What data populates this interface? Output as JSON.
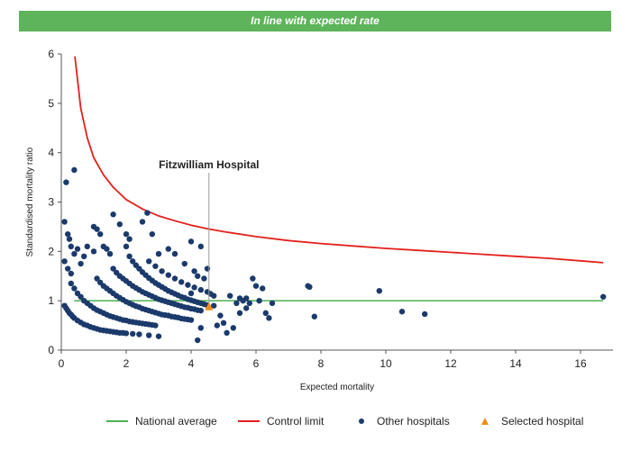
{
  "banner": {
    "text": "In line with expected rate"
  },
  "chart_data": {
    "type": "scatter",
    "xlabel": "Expected mortality",
    "ylabel": "Standardised mortality ratio",
    "xlim": [
      0,
      17
    ],
    "ylim": [
      0,
      6
    ],
    "xticks": [
      0,
      2,
      4,
      6,
      8,
      10,
      12,
      14,
      16
    ],
    "yticks": [
      0,
      1,
      2,
      3,
      4,
      5,
      6
    ],
    "grid": false,
    "legend_position": "bottom",
    "national_average": {
      "name": "National average",
      "color": "#4caf50",
      "x": [
        0.4,
        16.7
      ],
      "y": 1.0
    },
    "control_limit": {
      "name": "Control limit",
      "color": "#e3201b",
      "points": [
        [
          0.42,
          5.95
        ],
        [
          0.6,
          4.9
        ],
        [
          0.8,
          4.3
        ],
        [
          1.0,
          3.9
        ],
        [
          1.3,
          3.55
        ],
        [
          1.6,
          3.3
        ],
        [
          2.0,
          3.05
        ],
        [
          2.5,
          2.86
        ],
        [
          3.0,
          2.72
        ],
        [
          3.5,
          2.62
        ],
        [
          4.0,
          2.53
        ],
        [
          4.5,
          2.46
        ],
        [
          5.0,
          2.4
        ],
        [
          6.0,
          2.3
        ],
        [
          7.0,
          2.22
        ],
        [
          8.0,
          2.16
        ],
        [
          9.0,
          2.11
        ],
        [
          10.0,
          2.06
        ],
        [
          11.0,
          2.02
        ],
        [
          12.0,
          1.98
        ],
        [
          13.0,
          1.94
        ],
        [
          14.0,
          1.9
        ],
        [
          15.0,
          1.86
        ],
        [
          16.0,
          1.81
        ],
        [
          16.7,
          1.77
        ]
      ]
    },
    "other_hospitals": {
      "name": "Other hospitals",
      "color": "#1b3a6b",
      "points": [
        [
          0.1,
          0.9
        ],
        [
          0.15,
          0.85
        ],
        [
          0.2,
          0.8
        ],
        [
          0.25,
          0.75
        ],
        [
          0.3,
          0.72
        ],
        [
          0.35,
          0.68
        ],
        [
          0.4,
          0.65
        ],
        [
          0.5,
          0.6
        ],
        [
          0.6,
          0.56
        ],
        [
          0.7,
          0.52
        ],
        [
          0.8,
          0.5
        ],
        [
          0.9,
          0.47
        ],
        [
          1.0,
          0.45
        ],
        [
          1.1,
          0.43
        ],
        [
          1.2,
          0.41
        ],
        [
          1.3,
          0.4
        ],
        [
          1.4,
          0.39
        ],
        [
          1.5,
          0.38
        ],
        [
          1.6,
          0.37
        ],
        [
          1.7,
          0.36
        ],
        [
          1.8,
          0.35
        ],
        [
          1.9,
          0.35
        ],
        [
          2.0,
          0.34
        ],
        [
          2.2,
          0.33
        ],
        [
          2.4,
          0.32
        ],
        [
          2.7,
          0.3
        ],
        [
          3.0,
          0.28
        ],
        [
          0.3,
          1.35
        ],
        [
          0.4,
          1.25
        ],
        [
          0.5,
          1.15
        ],
        [
          0.6,
          1.08
        ],
        [
          0.7,
          1.0
        ],
        [
          0.8,
          0.95
        ],
        [
          0.9,
          0.9
        ],
        [
          1.0,
          0.85
        ],
        [
          1.1,
          0.81
        ],
        [
          1.2,
          0.78
        ],
        [
          1.3,
          0.75
        ],
        [
          1.4,
          0.72
        ],
        [
          1.5,
          0.69
        ],
        [
          1.6,
          0.67
        ],
        [
          1.7,
          0.65
        ],
        [
          1.8,
          0.63
        ],
        [
          1.9,
          0.61
        ],
        [
          2.0,
          0.6
        ],
        [
          2.1,
          0.58
        ],
        [
          2.2,
          0.57
        ],
        [
          2.3,
          0.56
        ],
        [
          2.4,
          0.55
        ],
        [
          2.5,
          0.54
        ],
        [
          2.6,
          0.53
        ],
        [
          2.7,
          0.52
        ],
        [
          2.8,
          0.51
        ],
        [
          2.9,
          0.5
        ],
        [
          1.1,
          1.45
        ],
        [
          1.2,
          1.37
        ],
        [
          1.3,
          1.3
        ],
        [
          1.4,
          1.25
        ],
        [
          1.5,
          1.2
        ],
        [
          1.6,
          1.15
        ],
        [
          1.7,
          1.1
        ],
        [
          1.8,
          1.06
        ],
        [
          1.9,
          1.02
        ],
        [
          2.0,
          0.98
        ],
        [
          2.1,
          0.95
        ],
        [
          2.2,
          0.92
        ],
        [
          2.3,
          0.89
        ],
        [
          2.4,
          0.87
        ],
        [
          2.5,
          0.84
        ],
        [
          2.6,
          0.82
        ],
        [
          2.7,
          0.8
        ],
        [
          2.8,
          0.78
        ],
        [
          2.9,
          0.76
        ],
        [
          3.0,
          0.74
        ],
        [
          3.1,
          0.72
        ],
        [
          3.2,
          0.71
        ],
        [
          3.3,
          0.7
        ],
        [
          3.4,
          0.68
        ],
        [
          3.5,
          0.67
        ],
        [
          3.6,
          0.66
        ],
        [
          3.7,
          0.64
        ],
        [
          3.8,
          0.63
        ],
        [
          3.9,
          0.62
        ],
        [
          4.0,
          0.61
        ],
        [
          1.6,
          1.65
        ],
        [
          1.7,
          1.57
        ],
        [
          1.8,
          1.5
        ],
        [
          1.9,
          1.45
        ],
        [
          2.0,
          1.4
        ],
        [
          2.1,
          1.35
        ],
        [
          2.2,
          1.3
        ],
        [
          2.3,
          1.26
        ],
        [
          2.4,
          1.22
        ],
        [
          2.5,
          1.18
        ],
        [
          2.6,
          1.15
        ],
        [
          2.7,
          1.12
        ],
        [
          2.8,
          1.09
        ],
        [
          2.9,
          1.06
        ],
        [
          3.0,
          1.03
        ],
        [
          3.1,
          1.01
        ],
        [
          3.2,
          0.99
        ],
        [
          3.3,
          0.97
        ],
        [
          3.4,
          0.95
        ],
        [
          3.5,
          0.93
        ],
        [
          3.6,
          0.91
        ],
        [
          3.7,
          0.89
        ],
        [
          3.8,
          0.87
        ],
        [
          3.9,
          0.86
        ],
        [
          4.0,
          0.84
        ],
        [
          4.1,
          0.83
        ],
        [
          4.2,
          0.81
        ],
        [
          4.3,
          0.8
        ],
        [
          2.1,
          1.9
        ],
        [
          2.2,
          1.8
        ],
        [
          2.3,
          1.72
        ],
        [
          2.4,
          1.65
        ],
        [
          2.5,
          1.58
        ],
        [
          2.6,
          1.52
        ],
        [
          2.7,
          1.46
        ],
        [
          2.8,
          1.41
        ],
        [
          2.9,
          1.36
        ],
        [
          3.0,
          1.32
        ],
        [
          3.1,
          1.28
        ],
        [
          3.2,
          1.24
        ],
        [
          3.3,
          1.2
        ],
        [
          3.4,
          1.17
        ],
        [
          3.5,
          1.14
        ],
        [
          3.6,
          1.11
        ],
        [
          3.7,
          1.08
        ],
        [
          3.8,
          1.06
        ],
        [
          3.9,
          1.03
        ],
        [
          4.0,
          1.01
        ],
        [
          4.1,
          0.99
        ],
        [
          4.2,
          0.97
        ],
        [
          4.3,
          0.95
        ],
        [
          4.4,
          0.93
        ],
        [
          4.5,
          0.91
        ],
        [
          2.7,
          1.8
        ],
        [
          2.9,
          1.7
        ],
        [
          3.1,
          1.6
        ],
        [
          3.3,
          1.52
        ],
        [
          3.5,
          1.45
        ],
        [
          3.7,
          1.38
        ],
        [
          3.9,
          1.32
        ],
        [
          4.1,
          1.27
        ],
        [
          4.3,
          1.22
        ],
        [
          4.5,
          1.18
        ],
        [
          4.6,
          1.14
        ],
        [
          4.7,
          1.1
        ],
        [
          4.2,
          1.5
        ],
        [
          4.4,
          1.45
        ],
        [
          0.1,
          1.8
        ],
        [
          0.2,
          1.65
        ],
        [
          0.3,
          1.55
        ],
        [
          0.1,
          2.6
        ],
        [
          0.2,
          2.35
        ],
        [
          0.25,
          2.25
        ],
        [
          0.3,
          2.1
        ],
        [
          0.4,
          1.95
        ],
        [
          0.5,
          2.05
        ],
        [
          0.6,
          1.75
        ],
        [
          0.7,
          1.9
        ],
        [
          0.8,
          2.1
        ],
        [
          1.0,
          2.5
        ],
        [
          1.1,
          2.45
        ],
        [
          1.2,
          2.35
        ],
        [
          1.3,
          2.1
        ],
        [
          1.4,
          2.05
        ],
        [
          1.5,
          1.95
        ],
        [
          1.0,
          2.0
        ],
        [
          0.15,
          3.4
        ],
        [
          0.4,
          3.65
        ],
        [
          1.6,
          2.75
        ],
        [
          1.8,
          2.55
        ],
        [
          2.0,
          2.35
        ],
        [
          2.1,
          2.25
        ],
        [
          2.5,
          2.6
        ],
        [
          2.65,
          2.78
        ],
        [
          2.8,
          2.35
        ],
        [
          2.0,
          2.1
        ],
        [
          3.0,
          1.95
        ],
        [
          3.5,
          1.95
        ],
        [
          4.0,
          2.2
        ],
        [
          3.3,
          2.05
        ],
        [
          3.8,
          1.75
        ],
        [
          4.3,
          2.1
        ],
        [
          4.5,
          1.65
        ],
        [
          4.0,
          1.15
        ],
        [
          4.2,
          0.2
        ],
        [
          4.3,
          0.45
        ],
        [
          4.1,
          1.6
        ],
        [
          5.2,
          1.1
        ],
        [
          5.4,
          0.95
        ],
        [
          5.5,
          1.05
        ],
        [
          5.6,
          1.0
        ],
        [
          5.7,
          1.05
        ],
        [
          5.8,
          0.95
        ],
        [
          5.9,
          1.45
        ],
        [
          6.0,
          1.3
        ],
        [
          6.1,
          1.0
        ],
        [
          6.2,
          1.25
        ],
        [
          6.3,
          0.75
        ],
        [
          6.4,
          0.65
        ],
        [
          6.5,
          0.95
        ],
        [
          5.0,
          0.55
        ],
        [
          5.1,
          0.35
        ],
        [
          5.3,
          0.45
        ],
        [
          5.5,
          0.75
        ],
        [
          5.7,
          0.85
        ],
        [
          4.8,
          0.5
        ],
        [
          4.9,
          0.7
        ],
        [
          4.7,
          0.9
        ],
        [
          7.6,
          1.3
        ],
        [
          7.65,
          1.28
        ],
        [
          7.8,
          0.68
        ],
        [
          9.8,
          1.2
        ],
        [
          10.5,
          0.78
        ],
        [
          11.2,
          0.73
        ],
        [
          16.7,
          1.08
        ]
      ]
    },
    "selected_hospital": {
      "name": "Selected hospital",
      "color": "#f28c1e",
      "x": 4.55,
      "y": 0.88,
      "label": "Fitzwilliam Hospital"
    }
  },
  "legend": [
    {
      "label": "National average",
      "color": "#4caf50"
    },
    {
      "label": "Control limit",
      "color": "#e3201b"
    },
    {
      "label": "Other hospitals",
      "color": "#1b3a6b"
    },
    {
      "label": "Selected hospital",
      "color": "#f28c1e"
    }
  ]
}
